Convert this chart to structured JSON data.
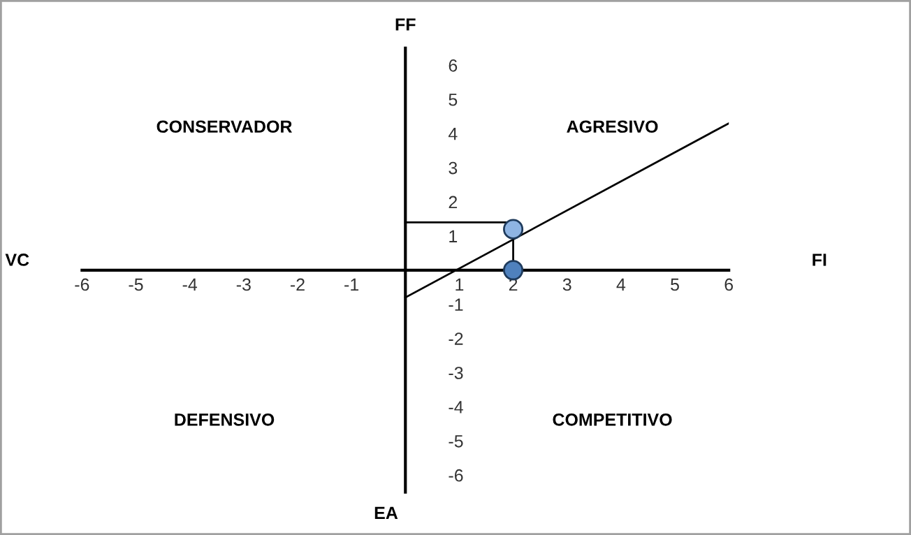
{
  "chart_data": {
    "type": "line",
    "annotations": [
      "FF",
      "FI",
      "VC",
      "EA",
      "CONSERVADOR",
      "AGRESIVO",
      "DEFENSIVO",
      "COMPETITIVO"
    ],
    "xlim": [
      -6,
      6
    ],
    "ylim": [
      -6.5,
      6.5
    ],
    "xticks": [
      -6,
      -5,
      -4,
      -3,
      -2,
      -1,
      1,
      2,
      3,
      4,
      5,
      6
    ],
    "yticks": [
      -6,
      -5,
      -4,
      -3,
      -2,
      -1,
      1,
      2,
      3,
      4,
      5,
      6
    ],
    "grid": false,
    "series": [
      {
        "color": "#000000",
        "marker": "none",
        "x": [
          0,
          6
        ],
        "values": [
          -0.8,
          4.3
        ]
      },
      {
        "color": "#000000",
        "marker": "none",
        "x": [
          0,
          2,
          2
        ],
        "values": [
          1.4,
          1.4,
          0
        ]
      },
      {
        "type": "scatter",
        "marker": "circle",
        "color": "#8eb4e3",
        "x": [
          2
        ],
        "values": [
          1.2
        ]
      },
      {
        "type": "scatter",
        "marker": "circle",
        "color": "#4f81bd",
        "x": [
          2
        ],
        "values": [
          0
        ]
      }
    ]
  }
}
